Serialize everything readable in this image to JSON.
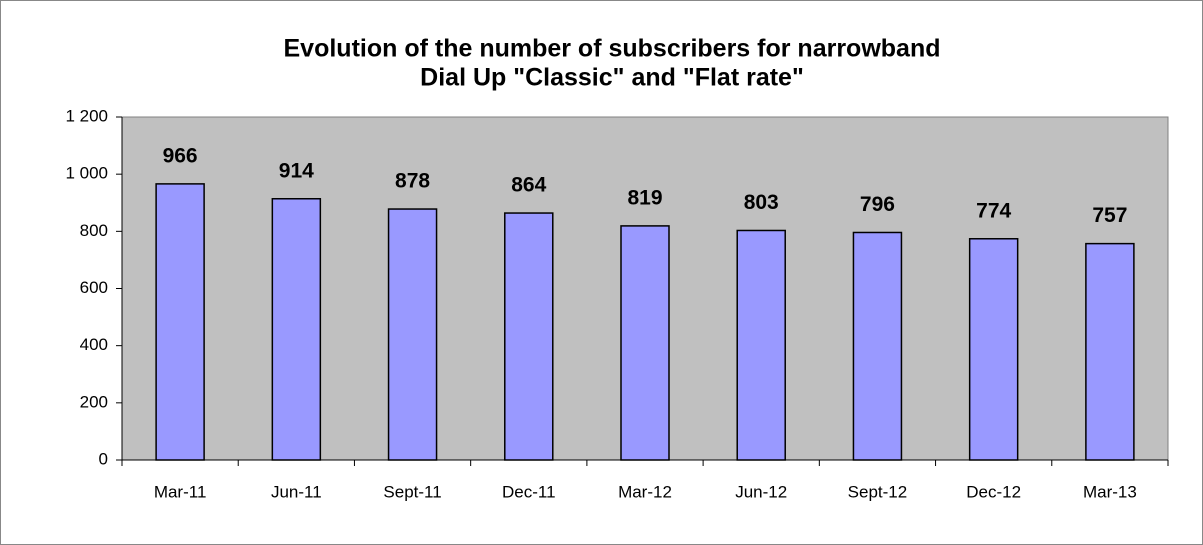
{
  "chart_data": {
    "type": "bar",
    "title": [
      "Evolution of the number of subscribers for narrowband",
      "Dial Up \"Classic\" and \"Flat rate\""
    ],
    "categories": [
      "Mar-11",
      "Jun-11",
      "Sept-11",
      "Dec-11",
      "Mar-12",
      "Jun-12",
      "Sept-12",
      "Dec-12",
      "Mar-13"
    ],
    "values": [
      966,
      914,
      878,
      864,
      819,
      803,
      796,
      774,
      757
    ],
    "color": "#9999ff",
    "plot_background": "#c0c0c0",
    "ylim": [
      0,
      1200
    ],
    "yticks": [
      0,
      200,
      400,
      600,
      800,
      {
        "value": 1000,
        "label": "1 000"
      },
      {
        "value": 1200,
        "label": "1 200"
      }
    ],
    "grid": false
  }
}
